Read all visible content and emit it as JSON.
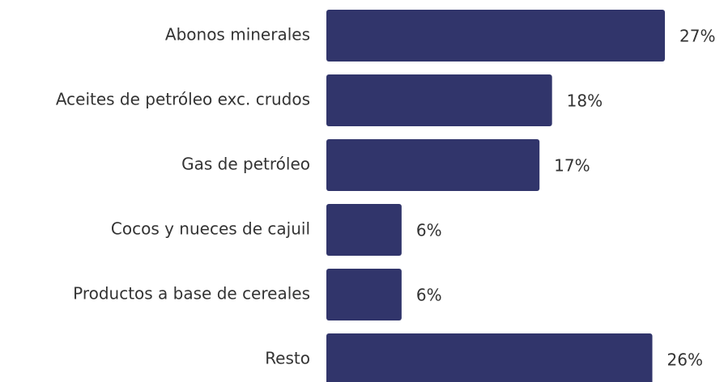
{
  "chart_data": {
    "type": "hbar",
    "categories": [
      "Abonos minerales",
      "Aceites de petróleo exc. crudos",
      "Gas de petróleo",
      "Cocos y nueces de cajuil",
      "Productos a base de cereales",
      "Resto"
    ],
    "values": [
      27,
      18,
      17,
      6,
      6,
      26
    ],
    "value_labels": [
      "27%",
      "18%",
      "17%",
      "6%",
      "6%",
      "26%"
    ],
    "color": "#31356b"
  }
}
